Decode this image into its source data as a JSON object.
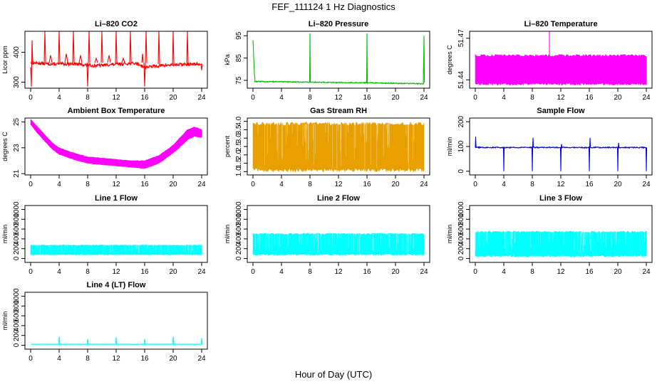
{
  "suptitle": "FEF_111124  1 Hz Diagnostics",
  "x_axis_label": "Hour of Day (UTC)",
  "chart_data": [
    {
      "id": "co2",
      "type": "line",
      "title": "Li–820 CO2",
      "ylabel": "Licor ppm",
      "color": "#ff0000",
      "xlim": [
        0,
        24
      ],
      "ylim": [
        280,
        470
      ],
      "xticks": [
        0,
        4,
        8,
        12,
        16,
        20,
        24
      ],
      "xticklabels": [
        "0",
        "4",
        "8",
        "12",
        "16",
        "20",
        "24"
      ],
      "yticks": [
        300,
        400
      ],
      "yticklabels": [
        "300",
        "400"
      ],
      "baseline": {
        "x": [
          0,
          3,
          6,
          9,
          12,
          14,
          15,
          16,
          18,
          20,
          22,
          24
        ],
        "y": [
          365,
          360,
          362,
          355,
          360,
          363,
          362,
          350,
          355,
          358,
          360,
          360
        ]
      },
      "noise": 5,
      "spikes": [
        {
          "x": [
            0.0,
            0.1,
            0.2,
            0.3,
            0.4
          ],
          "y": [
            350,
            285,
            440,
            360,
            365
          ]
        },
        {
          "x": [
            1.9,
            2.0,
            2.1
          ],
          "y": [
            365,
            470,
            365
          ]
        },
        {
          "x": [
            2.6,
            2.8,
            3.0
          ],
          "y": [
            365,
            390,
            365
          ]
        },
        {
          "x": [
            3.9,
            4.0,
            4.1
          ],
          "y": [
            365,
            470,
            365
          ]
        },
        {
          "x": [
            4.8,
            5.0,
            5.2
          ],
          "y": [
            365,
            395,
            365
          ]
        },
        {
          "x": [
            5.9,
            6.0,
            6.1
          ],
          "y": [
            365,
            470,
            365
          ]
        },
        {
          "x": [
            6.8,
            7.0,
            7.2
          ],
          "y": [
            365,
            390,
            365
          ]
        },
        {
          "x": [
            7.9,
            8.0,
            8.1
          ],
          "y": [
            365,
            285,
            365
          ]
        },
        {
          "x": [
            8.1,
            8.2,
            8.3
          ],
          "y": [
            365,
            470,
            365
          ]
        },
        {
          "x": [
            9.0,
            9.2,
            9.4
          ],
          "y": [
            365,
            380,
            365
          ]
        },
        {
          "x": [
            9.9,
            10.0,
            10.1
          ],
          "y": [
            365,
            470,
            365
          ]
        },
        {
          "x": [
            10.8,
            11.0,
            11.2
          ],
          "y": [
            365,
            390,
            365
          ]
        },
        {
          "x": [
            11.9,
            12.0,
            12.1
          ],
          "y": [
            365,
            470,
            365
          ]
        },
        {
          "x": [
            12.8,
            13.0,
            13.2
          ],
          "y": [
            365,
            380,
            365
          ]
        },
        {
          "x": [
            13.9,
            14.0,
            14.1
          ],
          "y": [
            365,
            470,
            365
          ]
        },
        {
          "x": [
            15.6,
            15.7,
            15.8
          ],
          "y": [
            365,
            395,
            365
          ]
        },
        {
          "x": [
            15.9,
            16.0,
            16.1
          ],
          "y": [
            365,
            285,
            365
          ]
        },
        {
          "x": [
            16.1,
            16.2,
            16.3
          ],
          "y": [
            365,
            470,
            365
          ]
        },
        {
          "x": [
            17.9,
            18.0,
            18.1
          ],
          "y": [
            360,
            470,
            360
          ]
        },
        {
          "x": [
            19.9,
            20.0,
            20.1
          ],
          "y": [
            355,
            470,
            355
          ]
        },
        {
          "x": [
            21.9,
            22.0,
            22.1
          ],
          "y": [
            360,
            470,
            360
          ]
        },
        {
          "x": [
            23.9,
            24.0,
            24.1
          ],
          "y": [
            360,
            340,
            360
          ]
        }
      ]
    },
    {
      "id": "pressure",
      "type": "line",
      "title": "Li–820 Pressure",
      "ylabel": "kPa",
      "color": "#00c000",
      "xlim": [
        0,
        24
      ],
      "ylim": [
        71.5,
        97
      ],
      "xticks": [
        0,
        4,
        8,
        12,
        16,
        20,
        24
      ],
      "xticklabels": [
        "0",
        "4",
        "8",
        "12",
        "16",
        "20",
        "24"
      ],
      "yticks": [
        75,
        85,
        95
      ],
      "yticklabels": [
        "75",
        "85",
        "95"
      ],
      "baseline": {
        "x": [
          0.2,
          8,
          16,
          24
        ],
        "y": [
          74.5,
          74.2,
          73.9,
          73.5
        ]
      },
      "noise": 0.2,
      "spikes": [
        {
          "x": [
            0.0,
            0.05,
            0.1,
            0.2,
            0.3
          ],
          "y": [
            93,
            90,
            85,
            78,
            74.5
          ]
        },
        {
          "x": [
            7.95,
            8.0,
            8.05
          ],
          "y": [
            74.2,
            96,
            74.2
          ]
        },
        {
          "x": [
            15.95,
            16.0,
            16.05
          ],
          "y": [
            73.9,
            96,
            73.9
          ]
        },
        {
          "x": [
            23.9,
            24.0,
            24.05
          ],
          "y": [
            73.5,
            95,
            74
          ]
        }
      ]
    },
    {
      "id": "li_temp",
      "type": "area",
      "title": "Li–820 Temperature",
      "ylabel": "degrees C",
      "color": "#ff00ff",
      "xlim": [
        0,
        24
      ],
      "ylim": [
        51.434,
        51.475
      ],
      "xticks": [
        0,
        4,
        8,
        12,
        16,
        20,
        24
      ],
      "xticklabels": [
        "0",
        "4",
        "8",
        "12",
        "16",
        "20",
        "24"
      ],
      "yticks": [
        51.44,
        51.47
      ],
      "yticklabels": [
        "51.44",
        "51.47"
      ],
      "band": {
        "x": [
          0,
          24
        ],
        "low": 51.437,
        "high": 51.4575
      },
      "spikes": [
        {
          "x": [
            10.4,
            10.4
          ],
          "y": [
            51.457,
            51.476
          ]
        }
      ]
    },
    {
      "id": "ambient",
      "type": "area",
      "title": "Ambient Box Temperature",
      "ylabel": "degrees C",
      "color": "#ff00ff",
      "xlim": [
        0,
        24
      ],
      "ylim": [
        20.9,
        25.3
      ],
      "xticks": [
        0,
        4,
        8,
        12,
        16,
        20,
        24
      ],
      "xticklabels": [
        "0",
        "4",
        "8",
        "12",
        "16",
        "20",
        "24"
      ],
      "yticks": [
        21,
        23,
        25
      ],
      "yticklabels": [
        "21",
        "23",
        "25"
      ],
      "band": {
        "x": [
          0,
          1,
          2,
          3,
          4,
          6,
          8,
          10,
          12,
          14,
          16,
          18,
          20,
          22,
          23,
          24
        ],
        "low": [
          24.8,
          24.1,
          23.5,
          22.9,
          22.5,
          22.1,
          21.8,
          21.7,
          21.6,
          21.5,
          21.4,
          21.8,
          22.6,
          23.6,
          23.9,
          23.8
        ],
        "high": [
          25.2,
          24.6,
          24.0,
          23.4,
          23.0,
          22.6,
          22.3,
          22.2,
          22.1,
          22.0,
          22.0,
          22.4,
          23.2,
          24.4,
          24.6,
          24.4
        ]
      }
    },
    {
      "id": "rh",
      "type": "area",
      "title": "Gas Stream RH",
      "ylabel": "percent",
      "color": "#e8a000",
      "xlim": [
        0,
        24
      ],
      "ylim": [
        0.8,
        4.2
      ],
      "xticks": [
        0,
        4,
        8,
        12,
        16,
        20,
        24
      ],
      "xticklabels": [
        "0",
        "4",
        "8",
        "12",
        "16",
        "20",
        "24"
      ],
      "yticks": [
        1.0,
        1.5,
        2.0,
        2.5,
        3.0,
        3.5,
        4.0
      ],
      "yticklabels": [
        "1.0",
        "1.5",
        "2.0",
        "2.5",
        "3.0",
        "3.5",
        "4.0"
      ],
      "band": {
        "x": [
          0,
          24
        ],
        "low": 1.1,
        "high": 3.85
      }
    },
    {
      "id": "sample",
      "type": "line",
      "title": "Sample Flow",
      "ylabel": "ml/min",
      "color": "#0000ff",
      "xlim": [
        0,
        24
      ],
      "ylim": [
        -15,
        215
      ],
      "xticks": [
        0,
        4,
        8,
        12,
        16,
        20,
        24
      ],
      "xticklabels": [
        "0",
        "4",
        "8",
        "12",
        "16",
        "20",
        "24"
      ],
      "yticks": [
        0,
        100,
        200
      ],
      "yticklabels": [
        "0",
        "100",
        "200"
      ],
      "baseline": {
        "x": [
          0,
          24
        ],
        "y": [
          96,
          96
        ]
      },
      "noise": 2,
      "spikes": [
        {
          "x": [
            0.0,
            0.05,
            0.1
          ],
          "y": [
            96,
            140,
            96
          ]
        },
        {
          "x": [
            3.95,
            4.0,
            4.05
          ],
          "y": [
            96,
            0,
            96
          ]
        },
        {
          "x": [
            7.95,
            8.0,
            8.05
          ],
          "y": [
            96,
            0,
            96
          ]
        },
        {
          "x": [
            8.05,
            8.1,
            8.15
          ],
          "y": [
            96,
            135,
            96
          ]
        },
        {
          "x": [
            11.95,
            12.0,
            12.05
          ],
          "y": [
            96,
            0,
            96
          ]
        },
        {
          "x": [
            12.05,
            12.1,
            12.15
          ],
          "y": [
            96,
            110,
            96
          ]
        },
        {
          "x": [
            15.95,
            16.0,
            16.05
          ],
          "y": [
            96,
            0,
            96
          ]
        },
        {
          "x": [
            16.05,
            16.1,
            16.15
          ],
          "y": [
            96,
            135,
            96
          ]
        },
        {
          "x": [
            19.95,
            20.0,
            20.05
          ],
          "y": [
            96,
            0,
            96
          ]
        },
        {
          "x": [
            20.05,
            20.1,
            20.15
          ],
          "y": [
            96,
            115,
            96
          ]
        },
        {
          "x": [
            23.95,
            24.0,
            24.05
          ],
          "y": [
            96,
            0,
            96
          ]
        }
      ]
    },
    {
      "id": "line1",
      "type": "area",
      "title": "Line 1 Flow",
      "ylabel": "ml/min",
      "color": "#00ffff",
      "xlim": [
        0,
        24
      ],
      "ylim": [
        -80,
        1080
      ],
      "xticks": [
        0,
        4,
        8,
        12,
        16,
        20,
        24
      ],
      "xticklabels": [
        "0",
        "4",
        "8",
        "12",
        "16",
        "20",
        "24"
      ],
      "yticks": [
        0,
        200,
        400,
        600,
        800,
        1000
      ],
      "yticklabels": [
        "0",
        "200",
        "400",
        "600",
        "800",
        "1000"
      ],
      "band": {
        "x": [
          0,
          24
        ],
        "low": 80,
        "high": 270
      }
    },
    {
      "id": "line2",
      "type": "area",
      "title": "Line 2 Flow",
      "ylabel": "ml/min",
      "color": "#00ffff",
      "xlim": [
        0,
        24
      ],
      "ylim": [
        -80,
        1080
      ],
      "xticks": [
        0,
        4,
        8,
        12,
        16,
        20,
        24
      ],
      "xticklabels": [
        "0",
        "4",
        "8",
        "12",
        "16",
        "20",
        "24"
      ],
      "yticks": [
        0,
        200,
        400,
        600,
        800,
        1000
      ],
      "yticklabels": [
        "0",
        "200",
        "400",
        "600",
        "800",
        "1000"
      ],
      "band": {
        "x": [
          0,
          24
        ],
        "low": 80,
        "high": 500
      }
    },
    {
      "id": "line3",
      "type": "area",
      "title": "Line 3 Flow",
      "ylabel": "ml/min",
      "color": "#00ffff",
      "xlim": [
        0,
        24
      ],
      "ylim": [
        -80,
        1080
      ],
      "xticks": [
        0,
        4,
        8,
        12,
        16,
        20,
        24
      ],
      "xticklabels": [
        "0",
        "4",
        "8",
        "12",
        "16",
        "20",
        "24"
      ],
      "yticks": [
        0,
        200,
        400,
        600,
        800,
        1000
      ],
      "yticklabels": [
        "0",
        "200",
        "400",
        "600",
        "800",
        "1000"
      ],
      "band": {
        "x": [
          0,
          24
        ],
        "low": 50,
        "high": 540
      }
    },
    {
      "id": "line4",
      "type": "line",
      "title": "Line 4 (LT) Flow",
      "ylabel": "ml/min",
      "color": "#00ffff",
      "xlim": [
        0,
        24
      ],
      "ylim": [
        -80,
        1080
      ],
      "xticks": [
        0,
        4,
        8,
        12,
        16,
        20,
        24
      ],
      "xticklabels": [
        "0",
        "4",
        "8",
        "12",
        "16",
        "20",
        "24"
      ],
      "yticks": [
        0,
        200,
        400,
        600,
        800,
        1000
      ],
      "yticklabels": [
        "0",
        "200",
        "400",
        "600",
        "800",
        "1000"
      ],
      "baseline": {
        "x": [
          0,
          24
        ],
        "y": [
          20,
          20
        ]
      },
      "noise": 3,
      "spikes": [
        {
          "x": [
            3.95,
            4.0,
            4.1
          ],
          "y": [
            20,
            180,
            20
          ]
        },
        {
          "x": [
            7.95,
            8.0,
            8.1
          ],
          "y": [
            20,
            130,
            20
          ]
        },
        {
          "x": [
            11.95,
            12.0,
            12.1
          ],
          "y": [
            20,
            170,
            20
          ]
        },
        {
          "x": [
            15.95,
            16.0,
            16.1
          ],
          "y": [
            20,
            130,
            20
          ]
        },
        {
          "x": [
            19.95,
            20.0,
            20.1
          ],
          "y": [
            20,
            180,
            20
          ]
        },
        {
          "x": [
            23.95,
            24.0,
            24.1
          ],
          "y": [
            20,
            150,
            20
          ]
        }
      ]
    }
  ]
}
